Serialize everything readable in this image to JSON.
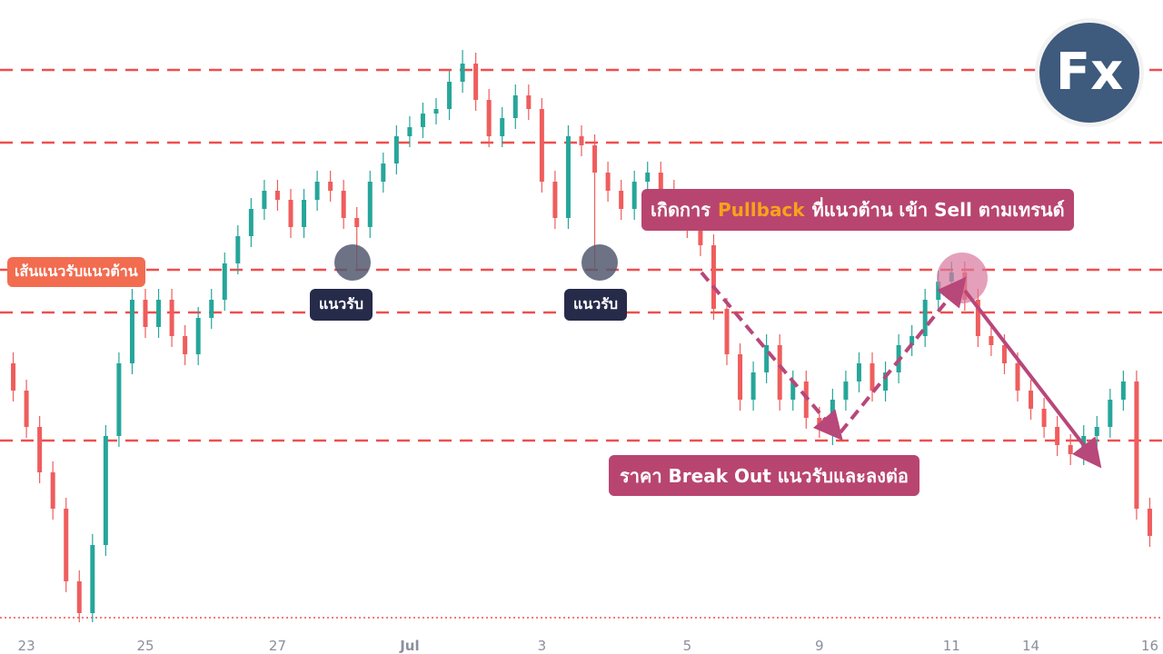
{
  "chart_data": {
    "type": "candlestick",
    "up_color": "#26a69a",
    "down_color": "#ef5d5d",
    "level_color": "#f04e4e",
    "xlim": [
      -1,
      87
    ],
    "ylim": [
      0,
      700
    ],
    "xticks": [
      {
        "value": 1,
        "label": "23"
      },
      {
        "value": 10,
        "label": "25"
      },
      {
        "value": 20,
        "label": "27"
      },
      {
        "value": 30,
        "label": "Jul"
      },
      {
        "value": 40,
        "label": "3"
      },
      {
        "value": 51,
        "label": "5"
      },
      {
        "value": 61,
        "label": "9"
      },
      {
        "value": 71,
        "label": "11"
      },
      {
        "value": 77,
        "label": "14"
      },
      {
        "value": 86,
        "label": "16"
      }
    ],
    "open": [
      300,
      270,
      230,
      180,
      140,
      60,
      25,
      100,
      220,
      300,
      370,
      340,
      370,
      330,
      310,
      350,
      370,
      410,
      440,
      470,
      490,
      480,
      450,
      480,
      500,
      490,
      460,
      450,
      500,
      520,
      550,
      560,
      575,
      580,
      610,
      630,
      590,
      550,
      570,
      595,
      580,
      500,
      460,
      550,
      540,
      510,
      490,
      470,
      500,
      510,
      490,
      470,
      450,
      430,
      360,
      310,
      260,
      290,
      320,
      260,
      280,
      240,
      230,
      260,
      280,
      300,
      270,
      290,
      320,
      330,
      370,
      390,
      400,
      370,
      330,
      320,
      300,
      270,
      250,
      230,
      210,
      200,
      220,
      230,
      260,
      280,
      140
    ],
    "high": [
      312,
      282,
      242,
      192,
      152,
      72,
      112,
      232,
      312,
      382,
      382,
      382,
      382,
      342,
      362,
      382,
      422,
      452,
      482,
      502,
      502,
      492,
      492,
      512,
      512,
      502,
      472,
      512,
      532,
      562,
      572,
      587,
      592,
      622,
      645,
      642,
      602,
      582,
      607,
      607,
      592,
      512,
      562,
      562,
      552,
      522,
      502,
      512,
      522,
      522,
      502,
      482,
      462,
      442,
      372,
      322,
      302,
      332,
      332,
      292,
      292,
      252,
      272,
      292,
      312,
      312,
      302,
      332,
      342,
      382,
      402,
      412,
      412,
      382,
      342,
      332,
      312,
      282,
      262,
      242,
      222,
      232,
      242,
      272,
      292,
      292,
      152
    ],
    "low": [
      258,
      218,
      168,
      128,
      48,
      15,
      15,
      88,
      208,
      288,
      328,
      328,
      318,
      298,
      298,
      338,
      358,
      398,
      428,
      458,
      468,
      438,
      438,
      468,
      478,
      448,
      405,
      438,
      488,
      508,
      538,
      548,
      563,
      568,
      598,
      578,
      538,
      538,
      558,
      568,
      488,
      448,
      448,
      528,
      405,
      478,
      458,
      458,
      488,
      478,
      458,
      438,
      418,
      348,
      298,
      248,
      248,
      278,
      248,
      248,
      228,
      218,
      210,
      248,
      268,
      258,
      258,
      278,
      308,
      318,
      358,
      378,
      358,
      318,
      308,
      288,
      258,
      238,
      218,
      198,
      188,
      188,
      208,
      218,
      248,
      128,
      98
    ],
    "close": [
      270,
      230,
      180,
      140,
      60,
      25,
      100,
      220,
      300,
      370,
      340,
      370,
      330,
      310,
      350,
      370,
      410,
      440,
      470,
      490,
      480,
      450,
      480,
      500,
      490,
      460,
      450,
      500,
      520,
      550,
      560,
      575,
      580,
      610,
      630,
      590,
      550,
      570,
      595,
      580,
      500,
      460,
      550,
      540,
      510,
      490,
      470,
      500,
      510,
      490,
      470,
      450,
      430,
      360,
      310,
      260,
      290,
      320,
      260,
      280,
      240,
      230,
      260,
      280,
      300,
      270,
      290,
      320,
      330,
      370,
      390,
      400,
      370,
      330,
      320,
      300,
      270,
      250,
      230,
      210,
      200,
      220,
      230,
      260,
      280,
      140,
      110
    ],
    "levels": [
      623,
      543,
      403,
      356,
      215
    ],
    "dotted_level": 20,
    "annotations": {
      "levels_label": "เส้นแนวรับแนวต้าน",
      "support_1": "แนวรับ",
      "support_2": "แนวรับ",
      "pullback": [
        "เกิดการ",
        "Pullback",
        "ที่แนวต้าน เข้า Sell ตามเทรนด์"
      ],
      "breakout": "ราคา Break Out แนวรับและลงต่อ"
    },
    "logo": "Fx"
  }
}
